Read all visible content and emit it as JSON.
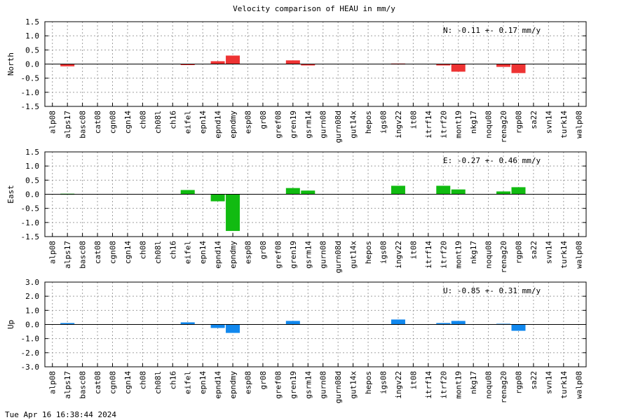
{
  "chart_data": {
    "type": "bar",
    "title": "Velocity comparison of HEAU in mm/y",
    "categories": [
      "alp08",
      "alps17",
      "basc08",
      "cat08",
      "cgn08",
      "cgn14",
      "ch08",
      "ch08l",
      "ch16",
      "eifel",
      "epn14",
      "epnd14",
      "epndmy",
      "esp08",
      "gr08",
      "gref08",
      "gren19",
      "gsrm14",
      "gurn08",
      "gurn08d",
      "gut14x",
      "hepos",
      "igs08",
      "ingv22",
      "it08",
      "itrf14",
      "itrf20",
      "mont19",
      "nkg17",
      "noqu08",
      "renag20",
      "rgp08",
      "sa22",
      "svn14",
      "turk14",
      "walp08"
    ],
    "panels": [
      {
        "ylabel": "North",
        "color": "#ee3333",
        "ylim": [
          -1.5,
          1.5
        ],
        "yticks": [
          "1.5",
          "1.0",
          "0.5",
          "0.0",
          "-0.5",
          "-1.0",
          "-1.5"
        ],
        "annotation": "N:  -0.11 +-  0.17 mm/y",
        "values": [
          null,
          -0.08,
          null,
          null,
          null,
          null,
          null,
          null,
          null,
          -0.03,
          null,
          0.1,
          0.3,
          null,
          null,
          null,
          0.13,
          -0.05,
          null,
          null,
          null,
          null,
          null,
          0.02,
          null,
          null,
          -0.05,
          -0.27,
          null,
          null,
          -0.1,
          -0.32,
          null,
          null,
          null,
          null
        ]
      },
      {
        "ylabel": "East",
        "color": "#11bb11",
        "ylim": [
          -1.5,
          1.5
        ],
        "yticks": [
          "1.5",
          "1.0",
          "0.5",
          "0.0",
          "-0.5",
          "-1.0",
          "-1.5"
        ],
        "annotation": "E:  -0.27 +-  0.46 mm/y",
        "values": [
          null,
          0.02,
          null,
          null,
          null,
          null,
          null,
          null,
          null,
          0.15,
          null,
          -0.25,
          -1.3,
          null,
          null,
          null,
          0.22,
          0.13,
          null,
          null,
          null,
          null,
          null,
          0.3,
          null,
          null,
          0.3,
          0.17,
          null,
          null,
          0.1,
          0.25,
          null,
          null,
          null,
          null
        ]
      },
      {
        "ylabel": "Up",
        "color": "#1188ee",
        "ylim": [
          -3.0,
          3.0
        ],
        "yticks": [
          "3.0",
          "2.0",
          "1.0",
          "0.0",
          "-1.0",
          "-2.0",
          "-3.0"
        ],
        "annotation": "U:  -0.85 +-  0.31 mm/y",
        "values": [
          null,
          0.1,
          null,
          null,
          null,
          null,
          null,
          null,
          null,
          0.15,
          null,
          -0.25,
          -0.6,
          null,
          null,
          null,
          0.25,
          null,
          null,
          null,
          null,
          null,
          null,
          0.35,
          null,
          null,
          0.1,
          0.25,
          null,
          null,
          0.05,
          -0.45,
          null,
          null,
          null,
          null
        ]
      }
    ],
    "grid": true
  },
  "footer": {
    "timestamp": "Tue Apr 16 16:38:44 2024"
  }
}
